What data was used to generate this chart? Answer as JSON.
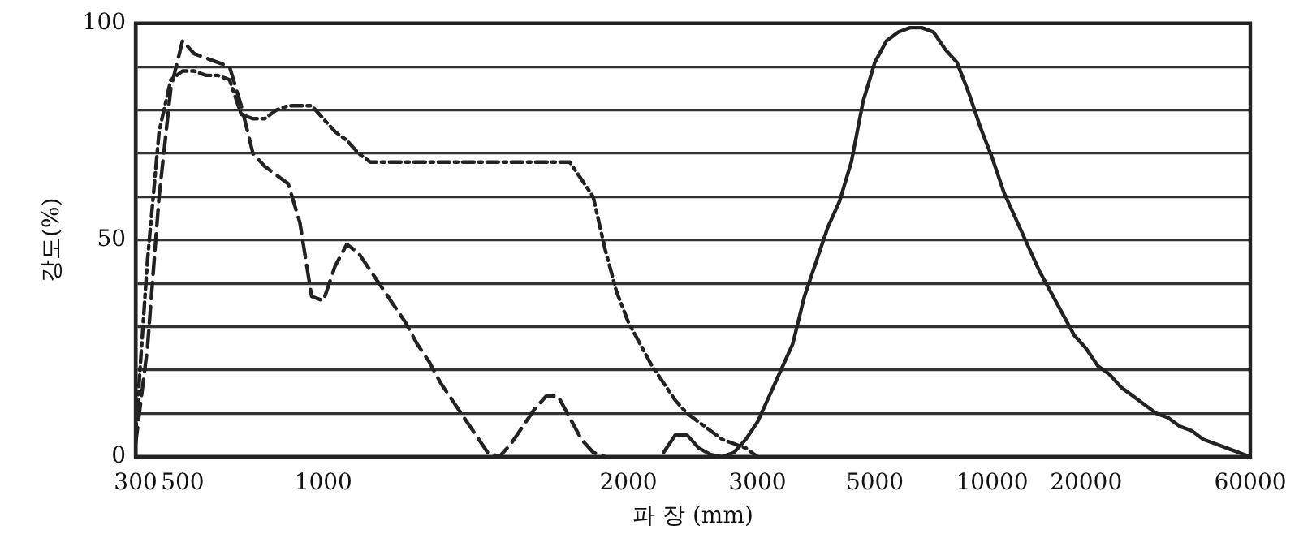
{
  "chart_data": {
    "type": "line",
    "xlabel": "파 장 (mm)",
    "ylabel": "강도(%)",
    "categories": [
      "300",
      null,
      null,
      null,
      "500",
      null,
      null,
      null,
      null,
      null,
      null,
      null,
      null,
      null,
      null,
      null,
      "1000",
      null,
      null,
      null,
      null,
      null,
      null,
      null,
      null,
      null,
      null,
      null,
      null,
      null,
      null,
      null,
      null,
      null,
      null,
      null,
      null,
      null,
      null,
      null,
      null,
      null,
      "2000",
      null,
      null,
      null,
      null,
      null,
      null,
      null,
      null,
      null,
      null,
      "3000",
      null,
      null,
      null,
      null,
      null,
      null,
      null,
      null,
      null,
      "5000",
      null,
      null,
      null,
      null,
      null,
      null,
      null,
      null,
      null,
      "10000",
      null,
      null,
      null,
      null,
      null,
      null,
      null,
      "20000",
      null,
      null,
      null,
      null,
      null,
      null,
      null,
      null,
      null,
      null,
      null,
      null,
      null,
      "60000"
    ],
    "series": [
      {
        "color": "#222222",
        "line_style": "solid",
        "values": [
          null,
          null,
          null,
          null,
          null,
          null,
          null,
          null,
          null,
          null,
          null,
          null,
          null,
          null,
          null,
          null,
          null,
          null,
          null,
          null,
          null,
          null,
          null,
          null,
          null,
          null,
          null,
          null,
          null,
          null,
          null,
          null,
          null,
          null,
          null,
          null,
          null,
          null,
          null,
          null,
          null,
          null,
          null,
          null,
          null,
          1,
          5,
          5,
          2,
          0.5,
          0,
          1,
          4,
          8,
          14,
          20,
          26,
          37,
          45,
          53,
          59,
          68,
          82,
          91,
          96,
          98,
          99,
          99,
          98,
          94,
          91,
          84,
          76,
          69,
          61,
          55,
          49,
          43,
          38,
          33,
          28,
          25,
          21,
          19,
          16,
          14,
          12,
          10,
          9,
          7,
          6,
          4,
          3,
          2,
          1,
          0
        ]
      },
      {
        "color": "#222222",
        "line_style": "dashed",
        "values": [
          3,
          25,
          60,
          85,
          96,
          93,
          92,
          91,
          90,
          81,
          70,
          67,
          65,
          63,
          54,
          37,
          36,
          44,
          49,
          47,
          43,
          39,
          35,
          31,
          26,
          22,
          17,
          13,
          9,
          5,
          1,
          0,
          3,
          7,
          11,
          14,
          14,
          9,
          4,
          1,
          0,
          null,
          null,
          null,
          null,
          null,
          null,
          null,
          null,
          null,
          null,
          null,
          null,
          null,
          null,
          null,
          null,
          null,
          null,
          null,
          null,
          null,
          null,
          null,
          null,
          null,
          null,
          null,
          null,
          null,
          null,
          null,
          null,
          null,
          null,
          null,
          null,
          null,
          null,
          null,
          null,
          null,
          null,
          null,
          null,
          null,
          null,
          null,
          null,
          null,
          null,
          null,
          null,
          null,
          null,
          null
        ]
      },
      {
        "color": "#222222",
        "line_style": "dotted",
        "values": [
          5,
          45,
          75,
          87,
          89,
          89,
          88,
          88,
          87,
          79,
          78,
          78,
          80,
          81,
          81,
          81,
          78,
          75,
          73,
          70,
          68,
          68,
          68,
          68,
          68,
          68,
          68,
          68,
          68,
          68,
          68,
          68,
          68,
          68,
          68,
          68,
          68,
          68,
          64,
          60,
          48,
          38,
          31,
          26,
          21,
          17,
          13,
          10,
          8,
          6,
          4,
          3,
          2,
          0,
          null,
          null,
          null,
          null,
          null,
          null,
          null,
          null,
          null,
          null,
          null,
          null,
          null,
          null,
          null,
          null,
          null,
          null,
          null,
          null,
          null,
          null,
          null,
          null,
          null,
          null,
          null,
          null,
          null,
          null,
          null,
          null,
          null,
          null,
          null,
          null,
          null,
          null,
          null,
          null,
          null,
          null
        ]
      }
    ],
    "ylim": [
      0,
      100
    ],
    "yticks": [
      0,
      {
        "value": 10,
        "label": null
      },
      {
        "value": 20,
        "label": null
      },
      {
        "value": 30,
        "label": null
      },
      {
        "value": 40,
        "label": null
      },
      50,
      {
        "value": 60,
        "label": null
      },
      {
        "value": 70,
        "label": null
      },
      {
        "value": 80,
        "label": null
      },
      {
        "value": 90,
        "label": null
      },
      100
    ],
    "grid": "y",
    "marker": "none"
  }
}
